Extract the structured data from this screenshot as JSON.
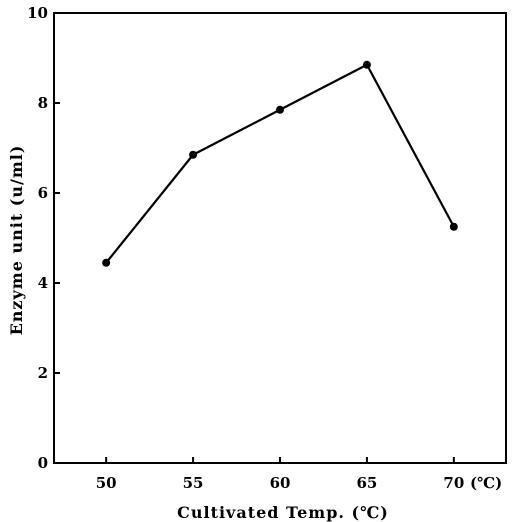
{
  "chart_data": {
    "type": "line",
    "title": "",
    "xlabel": "Cultivated Temp. (℃)",
    "ylabel": "Enzyme unit (u/ml)",
    "x_unit_label": "(℃)",
    "x": [
      50,
      55,
      60,
      65,
      70
    ],
    "xticks": [
      "50",
      "55",
      "60",
      "65",
      "70"
    ],
    "xlim": [
      47,
      73
    ],
    "yticks": [
      "0",
      "2",
      "4",
      "6",
      "8",
      "10"
    ],
    "ylim": [
      0,
      10
    ],
    "grid": false,
    "legend": "none",
    "series": [
      {
        "values": [
          4.45,
          6.85,
          7.85,
          8.85,
          5.25
        ]
      }
    ]
  }
}
